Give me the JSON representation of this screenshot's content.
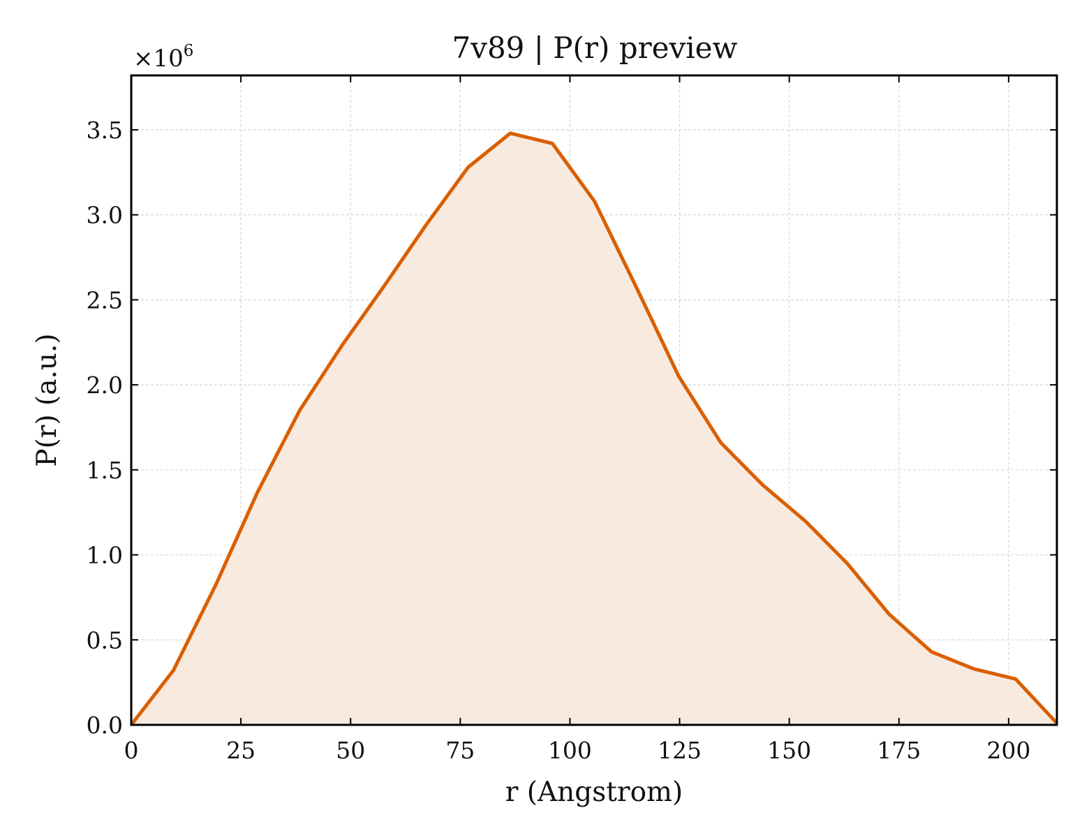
{
  "chart_data": {
    "type": "area",
    "title": "7v89 | P(r) preview",
    "xlabel": "r (Angstrom)",
    "ylabel": "P(r) (a.u.)",
    "y_scale_label": "×10",
    "y_scale_exponent": "6",
    "y_multiplier": 1000000,
    "xlim": [
      0,
      211
    ],
    "ylim": [
      0,
      3.82
    ],
    "x_ticks": [
      0,
      25,
      50,
      75,
      100,
      125,
      150,
      175,
      200
    ],
    "y_ticks": [
      0.0,
      0.5,
      1.0,
      1.5,
      2.0,
      2.5,
      3.0,
      3.5
    ],
    "x_tick_labels": [
      "0",
      "25",
      "50",
      "75",
      "100",
      "125",
      "150",
      "175",
      "200"
    ],
    "y_tick_labels": [
      "0.0",
      "0.5",
      "1.0",
      "1.5",
      "2.0",
      "2.5",
      "3.0",
      "3.5"
    ],
    "grid": true,
    "series": [
      {
        "x": [
          0,
          9.6,
          19.2,
          28.8,
          38.4,
          48.0,
          57.6,
          67.2,
          76.8,
          86.4,
          96.0,
          105.6,
          115.2,
          124.8,
          134.4,
          144.0,
          153.6,
          163.2,
          172.8,
          182.4,
          192.0,
          201.6,
          211.0
        ],
        "y": [
          0.0,
          0.32,
          0.82,
          1.37,
          1.85,
          2.23,
          2.58,
          2.94,
          3.28,
          3.48,
          3.42,
          3.08,
          2.57,
          2.05,
          1.66,
          1.41,
          1.2,
          0.95,
          0.65,
          0.43,
          0.33,
          0.27,
          0.01
        ],
        "color": "#d95f02",
        "fill_color": "#f8eadf"
      }
    ]
  }
}
